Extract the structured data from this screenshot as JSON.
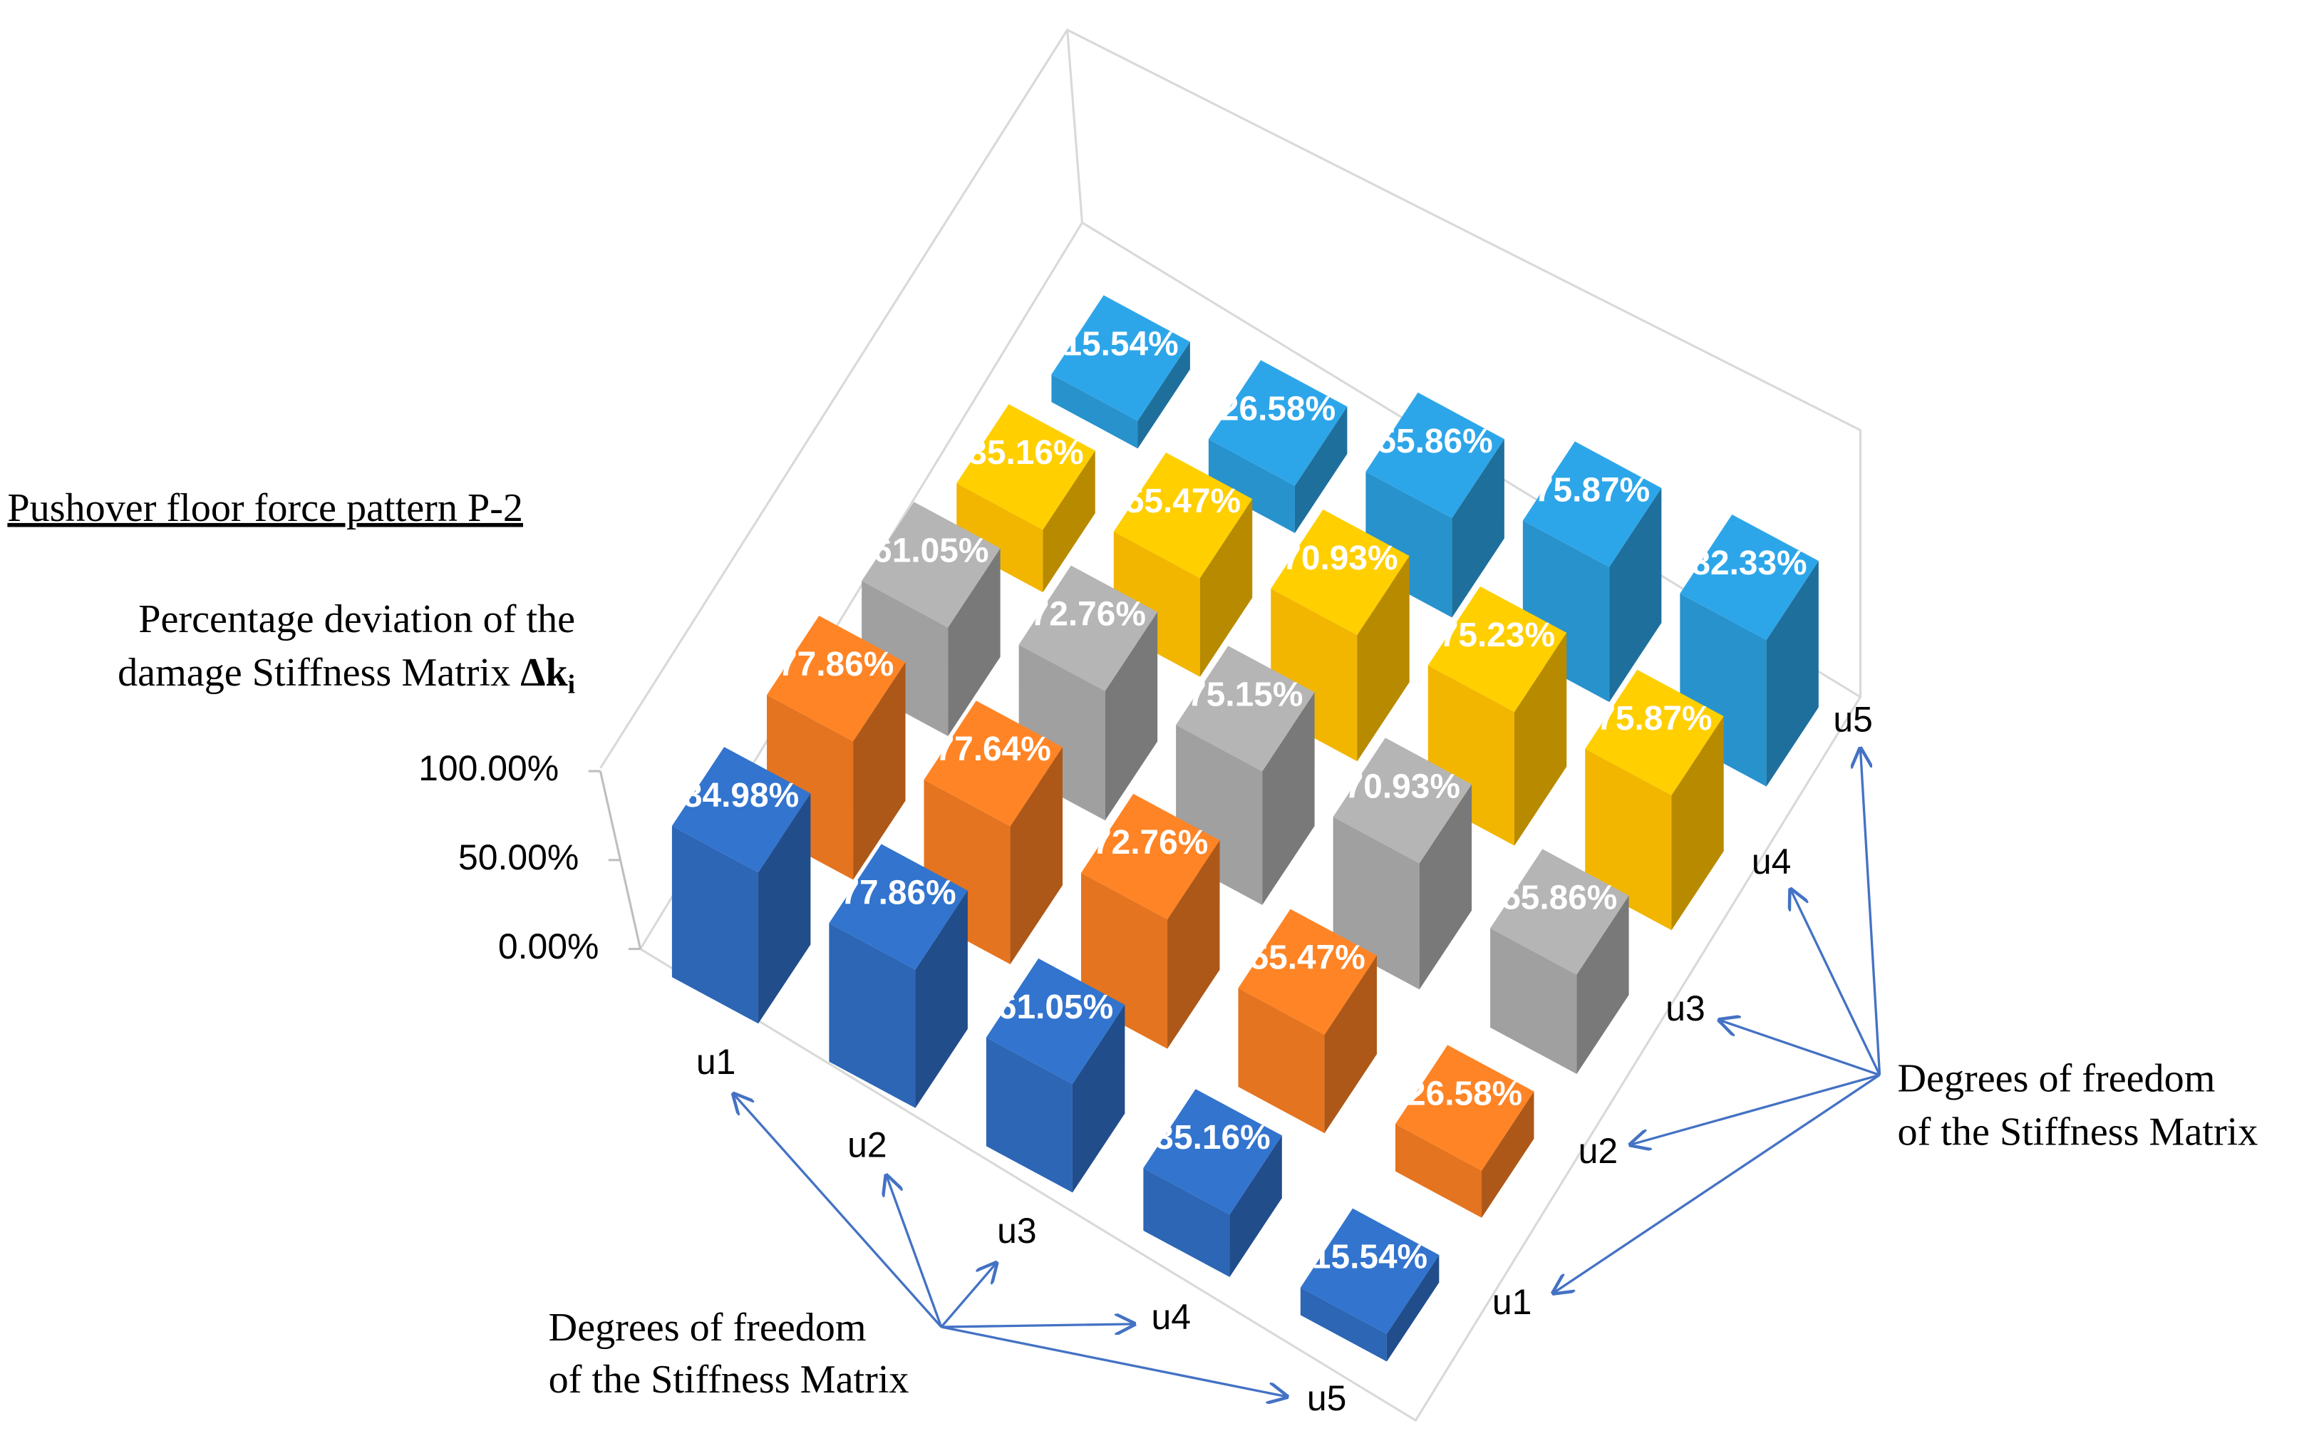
{
  "chart_data": {
    "type": "bar3d",
    "title": "Pushover floor force pattern P-2",
    "zlabel": [
      "Percentage deviation of the",
      "damage Stiffness Matrix"
    ],
    "zlabel_symbol": "Δk",
    "zlabel_subscript": "i",
    "categories": [
      "u1",
      "u2",
      "u3",
      "u4",
      "u5"
    ],
    "x_label": [
      "Degrees of freedom",
      "of the Stiffness Matrix"
    ],
    "y_label": [
      "Degrees of freedom",
      "of the Stiffness Matrix"
    ],
    "series": [
      {
        "name": "u1",
        "color": "#2e6bbf",
        "values": [
          84.98,
          77.86,
          61.05,
          35.16,
          15.54
        ],
        "value_labels": [
          "84.98%",
          "77.86%",
          "61.05%",
          "35.16%",
          "15.54%"
        ]
      },
      {
        "name": "u2",
        "color": "#f07a22",
        "values": [
          77.86,
          77.64,
          72.76,
          55.47,
          26.58
        ],
        "value_labels": [
          "77.86%",
          "77.64%",
          "72.76%",
          "55.47%",
          "26.58%"
        ]
      },
      {
        "name": "u3",
        "color": "#a8a8a8",
        "values": [
          61.05,
          72.76,
          75.15,
          70.93,
          55.86
        ],
        "value_labels": [
          "61.05%",
          "72.76%",
          "75.15%",
          "70.93%",
          "55.86%"
        ]
      },
      {
        "name": "u4",
        "color": "#ffc000",
        "values": [
          35.16,
          55.47,
          70.93,
          75.23,
          75.87
        ],
        "value_labels": [
          "35.16%",
          "55.47%",
          "70.93%",
          "75.23%",
          "75.87%"
        ]
      },
      {
        "name": "u5",
        "color": "#2a9ad8",
        "values": [
          15.54,
          26.58,
          55.86,
          75.87,
          82.33
        ],
        "value_labels": [
          "15.54%",
          "26.58%",
          "55.86%",
          "75.87%",
          "82.33%"
        ]
      }
    ],
    "zlim": [
      0,
      100
    ],
    "zticks": [
      {
        "value": 0,
        "label": "0.00%"
      },
      {
        "value": 50,
        "label": "50.00%"
      },
      {
        "value": 100,
        "label": "100.00%"
      }
    ]
  }
}
